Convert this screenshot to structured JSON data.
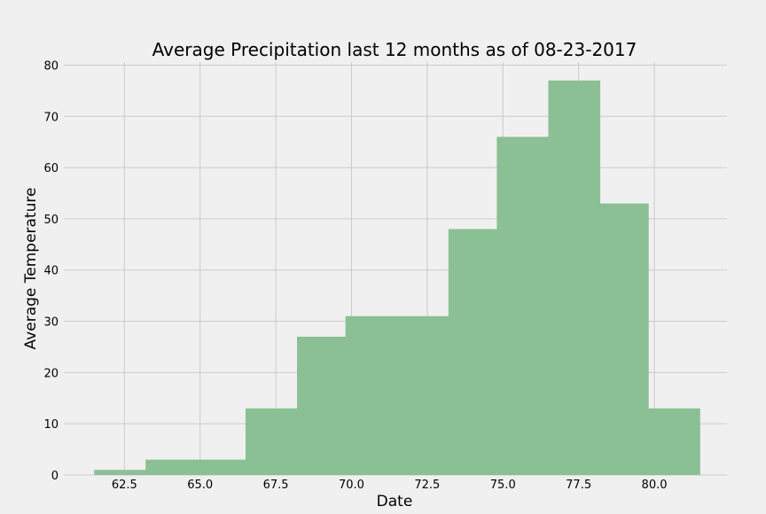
{
  "chart_data": {
    "type": "bar",
    "title": "Average Precipitation last 12 months as of 08-23-2017",
    "xlabel": "Date",
    "ylabel": "Average Temperature",
    "xlim": [
      60.5,
      82.4
    ],
    "ylim": [
      0,
      80.6
    ],
    "x_ticks": [
      62.5,
      65.0,
      67.5,
      70.0,
      72.5,
      75.0,
      77.5,
      80.0
    ],
    "x_tick_labels": [
      "62.5",
      "65.0",
      "67.5",
      "70.0",
      "72.5",
      "75.0",
      "77.5",
      "80.0"
    ],
    "y_ticks": [
      0,
      10,
      20,
      30,
      40,
      50,
      60,
      70,
      80
    ],
    "y_tick_labels": [
      "0",
      "10",
      "20",
      "30",
      "40",
      "50",
      "60",
      "70",
      "80"
    ],
    "grid": true,
    "bar_color": "#8ac094",
    "bins": [
      {
        "x0": 61.5,
        "x1": 63.2,
        "value": 1
      },
      {
        "x0": 63.2,
        "x1": 64.8,
        "value": 3
      },
      {
        "x0": 64.8,
        "x1": 66.5,
        "value": 3
      },
      {
        "x0": 66.5,
        "x1": 68.2,
        "value": 13
      },
      {
        "x0": 68.2,
        "x1": 69.8,
        "value": 27
      },
      {
        "x0": 69.8,
        "x1": 71.5,
        "value": 31
      },
      {
        "x0": 71.5,
        "x1": 73.2,
        "value": 31
      },
      {
        "x0": 73.2,
        "x1": 74.8,
        "value": 48
      },
      {
        "x0": 74.8,
        "x1": 76.5,
        "value": 66
      },
      {
        "x0": 76.5,
        "x1": 78.2,
        "value": 77
      },
      {
        "x0": 78.2,
        "x1": 79.8,
        "value": 53
      },
      {
        "x0": 79.8,
        "x1": 81.5,
        "value": 13
      }
    ]
  }
}
